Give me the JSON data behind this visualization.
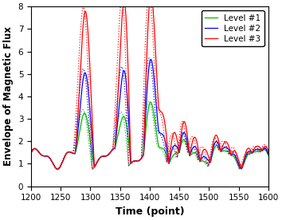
{
  "title": "",
  "xlabel": "Time (point)",
  "ylabel": "Envelope of Magnetic Flux",
  "xlim": [
    1200,
    1600
  ],
  "ylim": [
    0,
    8
  ],
  "xticks": [
    1200,
    1250,
    1300,
    1350,
    1400,
    1450,
    1500,
    1550,
    1600
  ],
  "yticks": [
    0,
    1,
    2,
    3,
    4,
    5,
    6,
    7,
    8
  ],
  "legend": [
    "Level #1",
    "Level #2",
    "Level #3"
  ],
  "colors": [
    "#00bb00",
    "#0000ff",
    "#ff0000"
  ],
  "background": "#ffffff",
  "figsize": [
    3.54,
    2.76
  ],
  "dpi": 100
}
